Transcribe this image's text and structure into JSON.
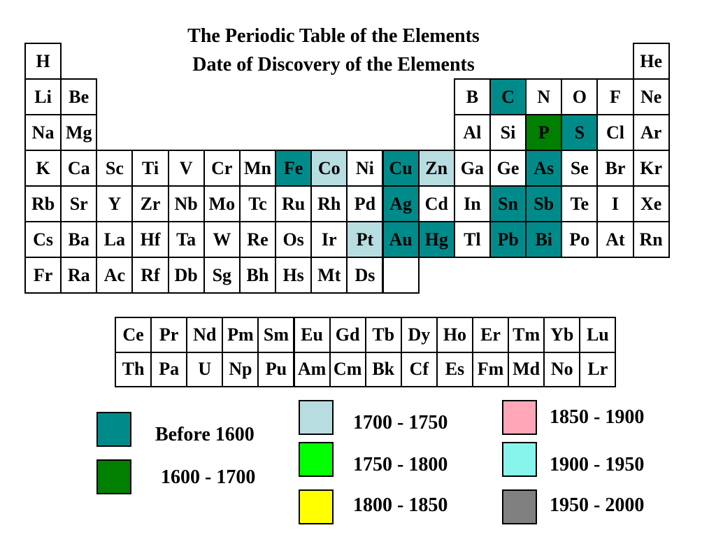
{
  "title": {
    "line1": "The Periodic Table of the Elements",
    "line2": "Date of Discovery of the Elements"
  },
  "colors": {
    "before1600": "#008b8b",
    "1600-1700": "#007f00",
    "1700-1750": "#b7dde1",
    "1750-1800": "#00ff00",
    "1800-1850": "#ffff00",
    "1850-1900": "#ffa6b9",
    "1900-1950": "#88f5ec",
    "1950-2000": "#808080",
    "unknown": "#ffffff"
  },
  "main_table": [
    {
      "symbol": "H",
      "row": 0,
      "col": 0,
      "era": "unknown"
    },
    {
      "symbol": "He",
      "row": 0,
      "col": 17,
      "era": "unknown"
    },
    {
      "symbol": "Li",
      "row": 1,
      "col": 0,
      "era": "unknown"
    },
    {
      "symbol": "Be",
      "row": 1,
      "col": 1,
      "era": "unknown"
    },
    {
      "symbol": "B",
      "row": 1,
      "col": 12,
      "era": "unknown"
    },
    {
      "symbol": "C",
      "row": 1,
      "col": 13,
      "era": "before1600"
    },
    {
      "symbol": "N",
      "row": 1,
      "col": 14,
      "era": "unknown"
    },
    {
      "symbol": "O",
      "row": 1,
      "col": 15,
      "era": "unknown"
    },
    {
      "symbol": "F",
      "row": 1,
      "col": 16,
      "era": "unknown"
    },
    {
      "symbol": "Ne",
      "row": 1,
      "col": 17,
      "era": "unknown"
    },
    {
      "symbol": "Na",
      "row": 2,
      "col": 0,
      "era": "unknown"
    },
    {
      "symbol": "Mg",
      "row": 2,
      "col": 1,
      "era": "unknown"
    },
    {
      "symbol": "Al",
      "row": 2,
      "col": 12,
      "era": "unknown"
    },
    {
      "symbol": "Si",
      "row": 2,
      "col": 13,
      "era": "unknown"
    },
    {
      "symbol": "P",
      "row": 2,
      "col": 14,
      "era": "1600-1700"
    },
    {
      "symbol": "S",
      "row": 2,
      "col": 15,
      "era": "before1600"
    },
    {
      "symbol": "Cl",
      "row": 2,
      "col": 16,
      "era": "unknown"
    },
    {
      "symbol": "Ar",
      "row": 2,
      "col": 17,
      "era": "unknown"
    },
    {
      "symbol": "K",
      "row": 3,
      "col": 0,
      "era": "unknown"
    },
    {
      "symbol": "Ca",
      "row": 3,
      "col": 1,
      "era": "unknown"
    },
    {
      "symbol": "Sc",
      "row": 3,
      "col": 2,
      "era": "unknown"
    },
    {
      "symbol": "Ti",
      "row": 3,
      "col": 3,
      "era": "unknown"
    },
    {
      "symbol": "V",
      "row": 3,
      "col": 4,
      "era": "unknown"
    },
    {
      "symbol": "Cr",
      "row": 3,
      "col": 5,
      "era": "unknown"
    },
    {
      "symbol": "Mn",
      "row": 3,
      "col": 6,
      "era": "unknown"
    },
    {
      "symbol": "Fe",
      "row": 3,
      "col": 7,
      "era": "before1600"
    },
    {
      "symbol": "Co",
      "row": 3,
      "col": 8,
      "era": "1700-1750"
    },
    {
      "symbol": "Ni",
      "row": 3,
      "col": 9,
      "era": "unknown"
    },
    {
      "symbol": "Cu",
      "row": 3,
      "col": 10,
      "era": "before1600"
    },
    {
      "symbol": "Zn",
      "row": 3,
      "col": 11,
      "era": "1700-1750"
    },
    {
      "symbol": "Ga",
      "row": 3,
      "col": 12,
      "era": "unknown"
    },
    {
      "symbol": "Ge",
      "row": 3,
      "col": 13,
      "era": "unknown"
    },
    {
      "symbol": "As",
      "row": 3,
      "col": 14,
      "era": "before1600"
    },
    {
      "symbol": "Se",
      "row": 3,
      "col": 15,
      "era": "unknown"
    },
    {
      "symbol": "Br",
      "row": 3,
      "col": 16,
      "era": "unknown"
    },
    {
      "symbol": "Kr",
      "row": 3,
      "col": 17,
      "era": "unknown"
    },
    {
      "symbol": "Rb",
      "row": 4,
      "col": 0,
      "era": "unknown"
    },
    {
      "symbol": "Sr",
      "row": 4,
      "col": 1,
      "era": "unknown"
    },
    {
      "symbol": "Y",
      "row": 4,
      "col": 2,
      "era": "unknown"
    },
    {
      "symbol": "Zr",
      "row": 4,
      "col": 3,
      "era": "unknown"
    },
    {
      "symbol": "Nb",
      "row": 4,
      "col": 4,
      "era": "unknown"
    },
    {
      "symbol": "Mo",
      "row": 4,
      "col": 5,
      "era": "unknown"
    },
    {
      "symbol": "Tc",
      "row": 4,
      "col": 6,
      "era": "unknown"
    },
    {
      "symbol": "Ru",
      "row": 4,
      "col": 7,
      "era": "unknown"
    },
    {
      "symbol": "Rh",
      "row": 4,
      "col": 8,
      "era": "unknown"
    },
    {
      "symbol": "Pd",
      "row": 4,
      "col": 9,
      "era": "unknown"
    },
    {
      "symbol": "Ag",
      "row": 4,
      "col": 10,
      "era": "before1600"
    },
    {
      "symbol": "Cd",
      "row": 4,
      "col": 11,
      "era": "unknown"
    },
    {
      "symbol": "In",
      "row": 4,
      "col": 12,
      "era": "unknown"
    },
    {
      "symbol": "Sn",
      "row": 4,
      "col": 13,
      "era": "before1600"
    },
    {
      "symbol": "Sb",
      "row": 4,
      "col": 14,
      "era": "before1600"
    },
    {
      "symbol": "Te",
      "row": 4,
      "col": 15,
      "era": "unknown"
    },
    {
      "symbol": "I",
      "row": 4,
      "col": 16,
      "era": "unknown"
    },
    {
      "symbol": "Xe",
      "row": 4,
      "col": 17,
      "era": "unknown"
    },
    {
      "symbol": "Cs",
      "row": 5,
      "col": 0,
      "era": "unknown"
    },
    {
      "symbol": "Ba",
      "row": 5,
      "col": 1,
      "era": "unknown"
    },
    {
      "symbol": "La",
      "row": 5,
      "col": 2,
      "era": "unknown"
    },
    {
      "symbol": "Hf",
      "row": 5,
      "col": 3,
      "era": "unknown"
    },
    {
      "symbol": "Ta",
      "row": 5,
      "col": 4,
      "era": "unknown"
    },
    {
      "symbol": "W",
      "row": 5,
      "col": 5,
      "era": "unknown"
    },
    {
      "symbol": "Re",
      "row": 5,
      "col": 6,
      "era": "unknown"
    },
    {
      "symbol": "Os",
      "row": 5,
      "col": 7,
      "era": "unknown"
    },
    {
      "symbol": "Ir",
      "row": 5,
      "col": 8,
      "era": "unknown"
    },
    {
      "symbol": "Pt",
      "row": 5,
      "col": 9,
      "era": "1700-1750"
    },
    {
      "symbol": "Au",
      "row": 5,
      "col": 10,
      "era": "before1600"
    },
    {
      "symbol": "Hg",
      "row": 5,
      "col": 11,
      "era": "before1600"
    },
    {
      "symbol": "Tl",
      "row": 5,
      "col": 12,
      "era": "unknown"
    },
    {
      "symbol": "Pb",
      "row": 5,
      "col": 13,
      "era": "before1600"
    },
    {
      "symbol": "Bi",
      "row": 5,
      "col": 14,
      "era": "before1600"
    },
    {
      "symbol": "Po",
      "row": 5,
      "col": 15,
      "era": "unknown"
    },
    {
      "symbol": "At",
      "row": 5,
      "col": 16,
      "era": "unknown"
    },
    {
      "symbol": "Rn",
      "row": 5,
      "col": 17,
      "era": "unknown"
    },
    {
      "symbol": "Fr",
      "row": 6,
      "col": 0,
      "era": "unknown"
    },
    {
      "symbol": "Ra",
      "row": 6,
      "col": 1,
      "era": "unknown"
    },
    {
      "symbol": "Ac",
      "row": 6,
      "col": 2,
      "era": "unknown"
    },
    {
      "symbol": "Rf",
      "row": 6,
      "col": 3,
      "era": "unknown"
    },
    {
      "symbol": "Db",
      "row": 6,
      "col": 4,
      "era": "unknown"
    },
    {
      "symbol": "Sg",
      "row": 6,
      "col": 5,
      "era": "unknown"
    },
    {
      "symbol": "Bh",
      "row": 6,
      "col": 6,
      "era": "unknown"
    },
    {
      "symbol": "Hs",
      "row": 6,
      "col": 7,
      "era": "unknown"
    },
    {
      "symbol": "Mt",
      "row": 6,
      "col": 8,
      "era": "unknown"
    },
    {
      "symbol": "Ds",
      "row": 6,
      "col": 9,
      "era": "unknown"
    },
    {
      "symbol": "",
      "row": 6,
      "col": 10,
      "era": "unknown"
    }
  ],
  "inner_table": [
    {
      "symbol": "Ce",
      "row": 0,
      "col": 0,
      "era": "unknown"
    },
    {
      "symbol": "Pr",
      "row": 0,
      "col": 1,
      "era": "unknown"
    },
    {
      "symbol": "Nd",
      "row": 0,
      "col": 2,
      "era": "unknown"
    },
    {
      "symbol": "Pm",
      "row": 0,
      "col": 3,
      "era": "unknown"
    },
    {
      "symbol": "Sm",
      "row": 0,
      "col": 4,
      "era": "unknown"
    },
    {
      "symbol": "Eu",
      "row": 0,
      "col": 5,
      "era": "unknown"
    },
    {
      "symbol": "Gd",
      "row": 0,
      "col": 6,
      "era": "unknown"
    },
    {
      "symbol": "Tb",
      "row": 0,
      "col": 7,
      "era": "unknown"
    },
    {
      "symbol": "Dy",
      "row": 0,
      "col": 8,
      "era": "unknown"
    },
    {
      "symbol": "Ho",
      "row": 0,
      "col": 9,
      "era": "unknown"
    },
    {
      "symbol": "Er",
      "row": 0,
      "col": 10,
      "era": "unknown"
    },
    {
      "symbol": "Tm",
      "row": 0,
      "col": 11,
      "era": "unknown"
    },
    {
      "symbol": "Yb",
      "row": 0,
      "col": 12,
      "era": "unknown"
    },
    {
      "symbol": "Lu",
      "row": 0,
      "col": 13,
      "era": "unknown"
    },
    {
      "symbol": "Th",
      "row": 1,
      "col": 0,
      "era": "unknown"
    },
    {
      "symbol": "Pa",
      "row": 1,
      "col": 1,
      "era": "unknown"
    },
    {
      "symbol": "U",
      "row": 1,
      "col": 2,
      "era": "unknown"
    },
    {
      "symbol": "Np",
      "row": 1,
      "col": 3,
      "era": "unknown"
    },
    {
      "symbol": "Pu",
      "row": 1,
      "col": 4,
      "era": "unknown"
    },
    {
      "symbol": "Am",
      "row": 1,
      "col": 5,
      "era": "unknown"
    },
    {
      "symbol": "Cm",
      "row": 1,
      "col": 6,
      "era": "unknown"
    },
    {
      "symbol": "Bk",
      "row": 1,
      "col": 7,
      "era": "unknown"
    },
    {
      "symbol": "Cf",
      "row": 1,
      "col": 8,
      "era": "unknown"
    },
    {
      "symbol": "Es",
      "row": 1,
      "col": 9,
      "era": "unknown"
    },
    {
      "symbol": "Fm",
      "row": 1,
      "col": 10,
      "era": "unknown"
    },
    {
      "symbol": "Md",
      "row": 1,
      "col": 11,
      "era": "unknown"
    },
    {
      "symbol": "No",
      "row": 1,
      "col": 12,
      "era": "unknown"
    },
    {
      "symbol": "Lr",
      "row": 1,
      "col": 13,
      "era": "unknown"
    }
  ],
  "legend": [
    {
      "era": "before1600",
      "label": "Before 1600"
    },
    {
      "era": "1600-1700",
      "label": "1600 - 1700"
    },
    {
      "era": "1700-1750",
      "label": "1700 - 1750"
    },
    {
      "era": "1750-1800",
      "label": "1750 - 1800"
    },
    {
      "era": "1800-1850",
      "label": "1800 - 1850"
    },
    {
      "era": "1850-1900",
      "label": "1850 - 1900"
    },
    {
      "era": "1900-1950",
      "label": "1900 - 1950"
    },
    {
      "era": "1950-2000",
      "label": "1950 - 2000"
    }
  ]
}
